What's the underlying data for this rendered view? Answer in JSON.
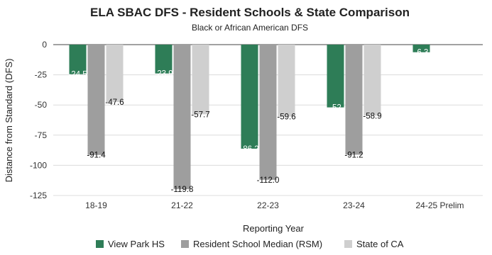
{
  "chart_data": {
    "type": "bar",
    "title": "ELA SBAC DFS - Resident Schools & State Comparison",
    "subtitle": "Black or African American DFS",
    "xlabel": "Reporting Year",
    "ylabel": "Distance from Standard (DFS)",
    "ylim": [
      -125,
      0
    ],
    "yticks": [
      0,
      -25,
      -50,
      -75,
      -100,
      -125
    ],
    "grid": true,
    "legend_position": "bottom",
    "categories": [
      "18-19",
      "21-22",
      "22-23",
      "23-24",
      "24-25 Prelim"
    ],
    "series": [
      {
        "name": "View Park HS",
        "color": "#2e7d57",
        "values": [
          -24.5,
          -23.9,
          -86.2,
          -52,
          -6.3
        ],
        "labels": [
          "-24.5",
          "-23.9",
          "-86.2",
          "-52",
          "-6.3"
        ]
      },
      {
        "name": "Resident School Median (RSM)",
        "color": "#9e9e9e",
        "values": [
          -91.4,
          -119.8,
          -112.0,
          -91.2,
          null
        ],
        "labels": [
          "-91.4",
          "-119.8",
          "-112.0",
          "-91.2",
          ""
        ]
      },
      {
        "name": "State of CA",
        "color": "#cfcfcf",
        "values": [
          -47.6,
          -57.7,
          -59.6,
          -58.9,
          null
        ],
        "labels": [
          "-47.6",
          "-57.7",
          "-59.6",
          "-58.9",
          ""
        ]
      }
    ]
  }
}
